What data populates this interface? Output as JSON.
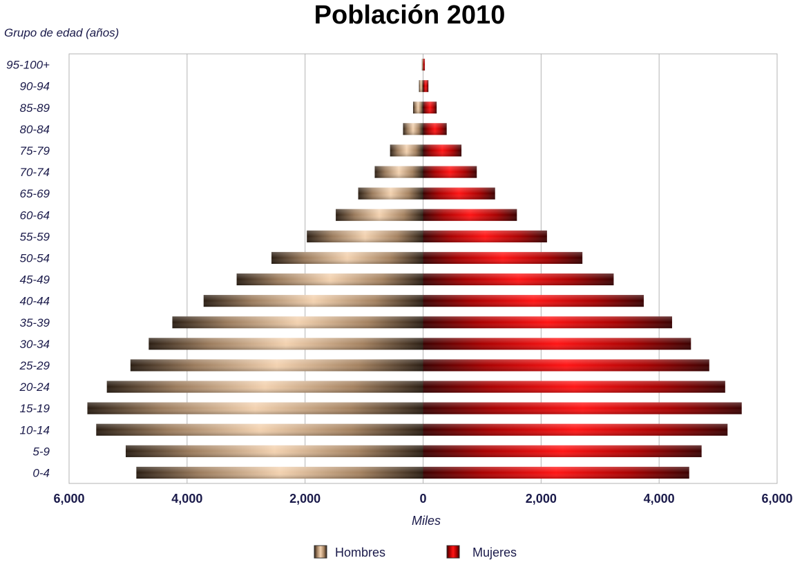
{
  "chart_data": {
    "type": "bar",
    "orientation": "horizontal",
    "subtype": "population-pyramid",
    "title": "Población 2010",
    "ylabel": "Grupo de edad (años)",
    "xlabel": "Miles",
    "categories": [
      "0-4",
      "5-9",
      "10-14",
      "15-19",
      "20-24",
      "25-29",
      "30-34",
      "35-39",
      "40-44",
      "45-49",
      "50-54",
      "55-59",
      "60-64",
      "65-69",
      "70-74",
      "75-79",
      "80-84",
      "85-89",
      "90-94",
      "95-100+"
    ],
    "series": [
      {
        "name": "Hombres",
        "side": "left",
        "color": "#e8c39e",
        "values": [
          4860,
          5040,
          5540,
          5690,
          5360,
          4960,
          4650,
          4250,
          3720,
          3160,
          2570,
          1970,
          1480,
          1100,
          820,
          560,
          340,
          170,
          70,
          20
        ]
      },
      {
        "name": "Mujeres",
        "side": "right",
        "color": "#e00000",
        "values": [
          4510,
          4720,
          5160,
          5400,
          5120,
          4850,
          4540,
          4220,
          3740,
          3230,
          2700,
          2100,
          1590,
          1220,
          910,
          650,
          400,
          230,
          90,
          30
        ]
      }
    ],
    "xlim": [
      -6000,
      6000
    ],
    "xticks": [
      {
        "value": -6000,
        "label": "6,000"
      },
      {
        "value": -4000,
        "label": "4,000"
      },
      {
        "value": -2000,
        "label": "2,000"
      },
      {
        "value": 0,
        "label": "0"
      },
      {
        "value": 2000,
        "label": "2,000"
      },
      {
        "value": 4000,
        "label": "4,000"
      },
      {
        "value": 6000,
        "label": "6,000"
      }
    ],
    "grid": true,
    "legend": "bottom"
  }
}
